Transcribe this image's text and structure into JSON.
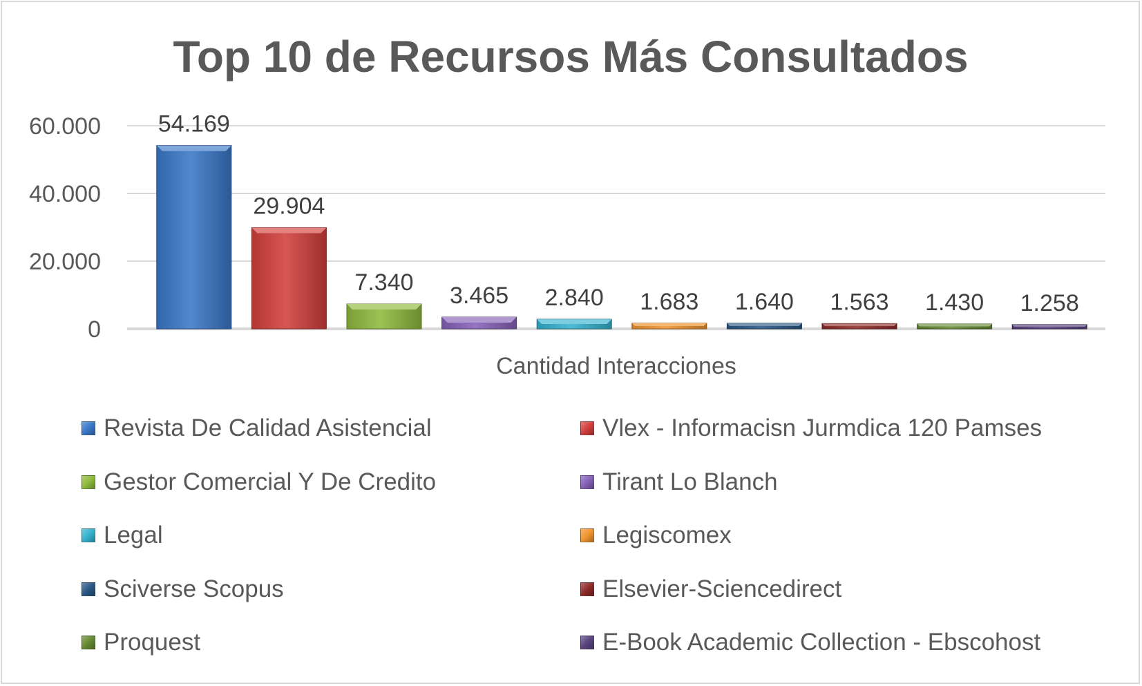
{
  "chart_data": {
    "type": "bar",
    "title": "Top 10 de Recursos Más Consultados",
    "xlabel": "Cantidad Interacciones",
    "ylabel": "",
    "ylim": [
      0,
      60000
    ],
    "yticks": [
      0,
      20000,
      40000,
      60000
    ],
    "ytick_labels": [
      "0",
      "20.000",
      "40.000",
      "60.000"
    ],
    "grid": true,
    "legend_position": "bottom",
    "series": [
      {
        "name": "Revista De Calidad Asistencial",
        "value": 54169,
        "label": "54.169",
        "color": "#3a78c9"
      },
      {
        "name": "Vlex - Informacisn Jurmdica 120 Pamses",
        "value": 29904,
        "label": "29.904",
        "color": "#d23f3c"
      },
      {
        "name": "Gestor Comercial Y De Credito",
        "value": 7340,
        "label": "7.340",
        "color": "#8fba3d"
      },
      {
        "name": "Tirant Lo Blanch",
        "value": 3465,
        "label": "3.465",
        "color": "#8661b8"
      },
      {
        "name": "Legal",
        "value": 2840,
        "label": "2.840",
        "color": "#35b2cf"
      },
      {
        "name": "Legiscomex",
        "value": 1683,
        "label": "1.683",
        "color": "#f0952f"
      },
      {
        "name": "Sciverse Scopus",
        "value": 1640,
        "label": "1.640",
        "color": "#2a5785"
      },
      {
        "name": "Elsevier-Sciencedirect",
        "value": 1563,
        "label": "1.563",
        "color": "#8e2a28"
      },
      {
        "name": "Proquest",
        "value": 1430,
        "label": "1.430",
        "color": "#668a32"
      },
      {
        "name": "E-Book Academic Collection - Ebscohost",
        "value": 1258,
        "label": "1.258",
        "color": "#5a4480"
      }
    ]
  }
}
